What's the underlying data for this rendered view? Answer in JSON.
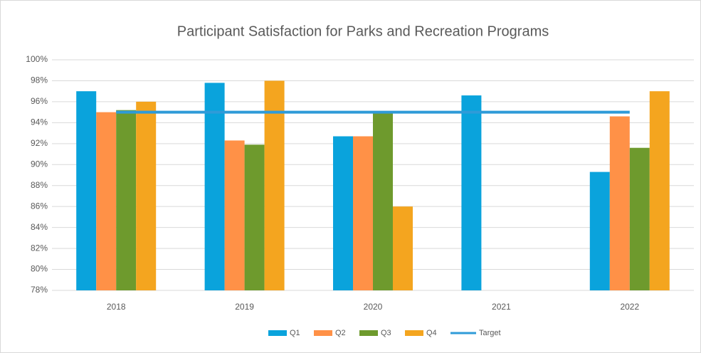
{
  "chart_data": {
    "type": "bar",
    "title": "Participant Satisfaction for Parks and Recreation Programs",
    "categories": [
      "2018",
      "2019",
      "2020",
      "2021",
      "2022"
    ],
    "series": [
      {
        "name": "Q1",
        "color": "#0aa3dc",
        "values": [
          97,
          97.8,
          92.7,
          96.6,
          89.3
        ]
      },
      {
        "name": "Q2",
        "color": "#ff9147",
        "values": [
          95,
          92.3,
          92.7,
          null,
          94.6
        ]
      },
      {
        "name": "Q3",
        "color": "#6e9a2d",
        "values": [
          95.2,
          91.9,
          95,
          null,
          91.6
        ]
      },
      {
        "name": "Q4",
        "color": "#f4a51f",
        "values": [
          96,
          98,
          86,
          null,
          97
        ]
      },
      {
        "name": "Target",
        "color": "#2f9bd8",
        "type": "line",
        "values": [
          95,
          95,
          95,
          95,
          95
        ]
      }
    ],
    "ylim": [
      78,
      100
    ],
    "yticks": [
      {
        "value": 78,
        "label": "78%"
      },
      {
        "value": 80,
        "label": "80%"
      },
      {
        "value": 82,
        "label": "82%"
      },
      {
        "value": 84,
        "label": "84%"
      },
      {
        "value": 86,
        "label": "86%"
      },
      {
        "value": 88,
        "label": "88%"
      },
      {
        "value": 90,
        "label": "90%"
      },
      {
        "value": 92,
        "label": "92%"
      },
      {
        "value": 94,
        "label": "94%"
      },
      {
        "value": 96,
        "label": "96%"
      },
      {
        "value": 98,
        "label": "98%"
      },
      {
        "value": 100,
        "label": "100%"
      }
    ],
    "grid": true,
    "legend": "bottom"
  }
}
